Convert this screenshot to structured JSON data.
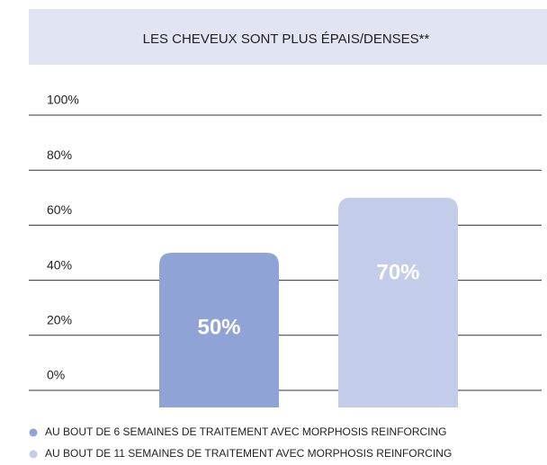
{
  "chart_data": {
    "type": "bar",
    "title": "LES CHEVEUX SONT PLUS ÉPAIS/DENSES**",
    "series": [
      {
        "name": "AU BOUT DE 6 SEMAINES DE TRAITEMENT AVEC MORPHOSIS REINFORCING",
        "color": "#8fa3d6",
        "values": [
          50
        ],
        "value_labels": [
          "50%"
        ]
      },
      {
        "name": "AU BOUT DE 11 SEMAINES DE TRAITEMENT AVEC MORPHOSIS REINFORCING",
        "color": "#c3cdea",
        "values": [
          70
        ],
        "value_labels": [
          "70%"
        ]
      }
    ],
    "ylim": [
      0,
      100
    ],
    "yticks": [
      {
        "value": 0,
        "label": "0%"
      },
      {
        "value": 20,
        "label": "20%"
      },
      {
        "value": 40,
        "label": "40%"
      },
      {
        "value": 60,
        "label": "60%"
      },
      {
        "value": 80,
        "label": "80%"
      },
      {
        "value": 100,
        "label": "100%"
      }
    ],
    "grid": true
  }
}
